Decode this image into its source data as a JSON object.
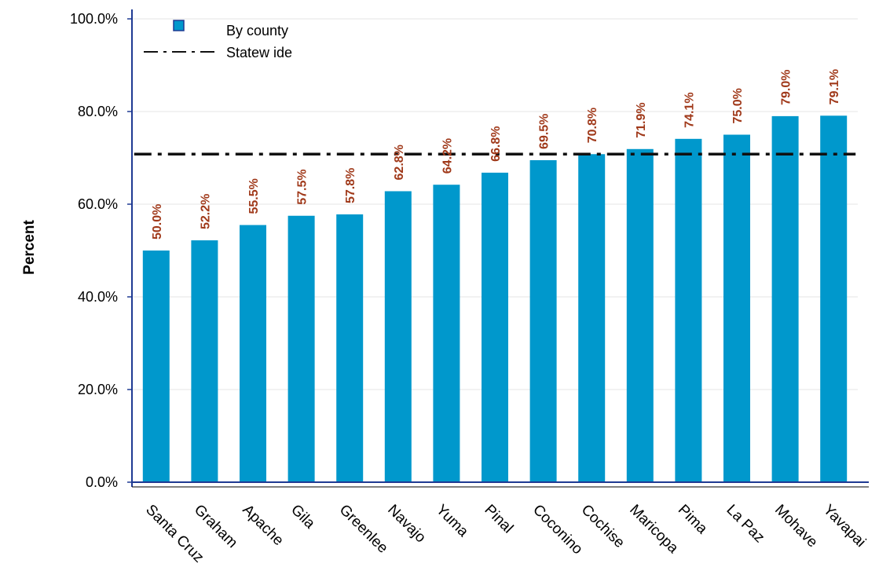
{
  "chart_data": {
    "type": "bar",
    "title": "",
    "xlabel": "",
    "ylabel": "Percent",
    "ylim": [
      0,
      100
    ],
    "yticks": [
      0,
      20,
      40,
      60,
      80,
      100
    ],
    "ytick_labels": [
      "0.0%",
      "20.0%",
      "40.0%",
      "60.0%",
      "80.0%",
      "100.0%"
    ],
    "categories": [
      "Santa Cruz",
      "Graham",
      "Apache",
      "Gila",
      "Greenlee",
      "Navajo",
      "Yuma",
      "Pinal",
      "Coconino",
      "Cochise",
      "Maricopa",
      "Pima",
      "La Paz",
      "Mohave",
      "Yavapai"
    ],
    "series": [
      {
        "name": "By county",
        "values": [
          50.0,
          52.2,
          55.5,
          57.5,
          57.8,
          62.8,
          64.2,
          66.8,
          69.5,
          70.8,
          71.9,
          74.1,
          75.0,
          79.0,
          79.1
        ],
        "labels": [
          "50.0%",
          "52.2%",
          "55.5%",
          "57.5%",
          "57.8%",
          "62.8%",
          "64.2%",
          "66.8%",
          "69.5%",
          "70.8%",
          "71.9%",
          "74.1%",
          "75.0%",
          "79.0%",
          "79.1%"
        ]
      }
    ],
    "reference_line": {
      "name": "Statew ide",
      "value": 70.8
    },
    "grid": true,
    "legend_position": "top-left",
    "colors": {
      "bar": "#0098CC",
      "bar_legend_border": "#1F3A93",
      "line": "#111111",
      "data_label": "#A0391A",
      "axis": "#1F3A93",
      "grid": "#E6E6E6"
    }
  }
}
